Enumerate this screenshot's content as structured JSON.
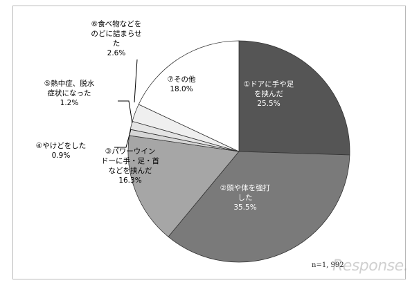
{
  "chart_data": {
    "type": "pie",
    "title": "",
    "slices": [
      {
        "label": "①ドアに手や足\nを挟んだ",
        "value": 25.5,
        "value_text": "25.5%",
        "color": "#555555"
      },
      {
        "label": "②頭や体を強打\nした",
        "value": 35.5,
        "value_text": "35.5%",
        "color": "#7a7a7a"
      },
      {
        "label": "③パワーウイン\nドーに手・足・首\nなどを挟んだ",
        "value": 16.3,
        "value_text": "16.3%",
        "color": "#a6a6a6"
      },
      {
        "label": "④やけどをした",
        "value": 0.9,
        "value_text": "0.9%",
        "color": "#d6d6d6"
      },
      {
        "label": "⑤熱中症、脱水\n症状になった",
        "value": 1.2,
        "value_text": "1.2%",
        "color": "#e4e4e4"
      },
      {
        "label": "⑥食べ物などを\nのどに詰まらせ\nた",
        "value": 2.6,
        "value_text": "2.6%",
        "color": "#efefef"
      },
      {
        "label": "⑦その他",
        "value": 18.0,
        "value_text": "18.0%",
        "color": "#ffffff"
      }
    ],
    "start_angle_deg": 0,
    "direction": "clockwise"
  },
  "note": "n=1, 992",
  "watermark": "Response."
}
